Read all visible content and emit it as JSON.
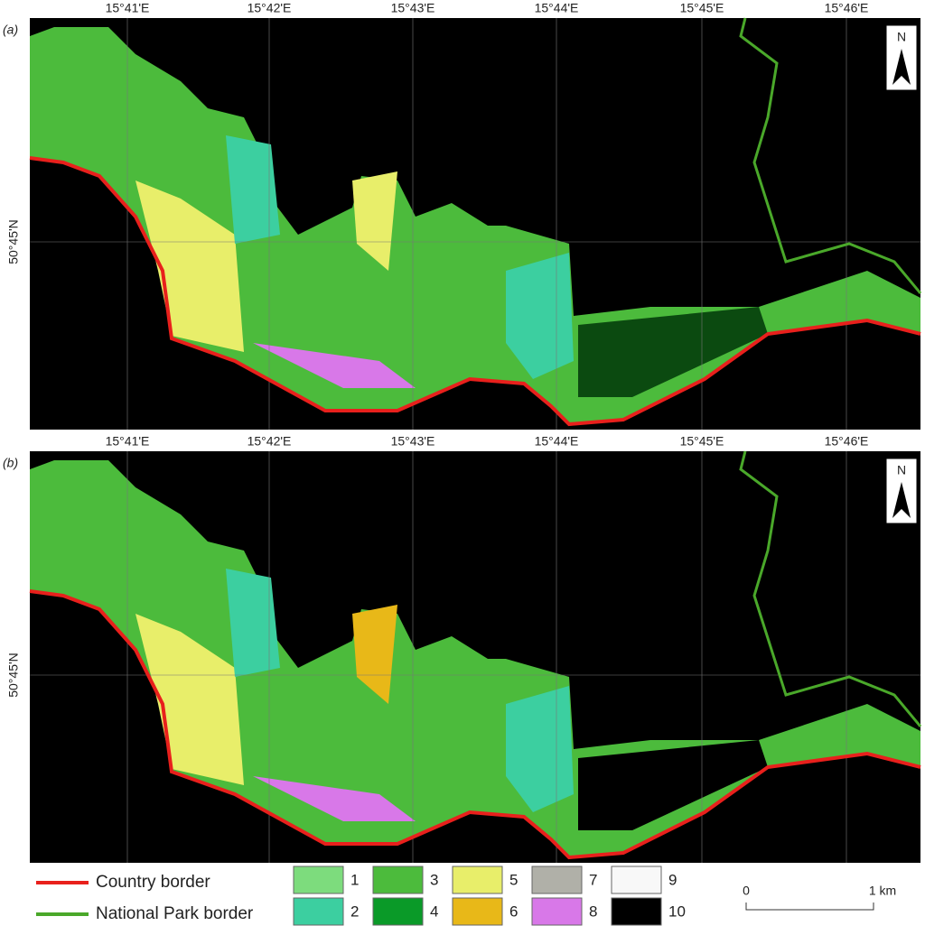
{
  "panels": [
    {
      "label": "(a)",
      "lon_labels": [
        "15°41'E",
        "15°42'E",
        "15°43'E",
        "15°44'E",
        "15°45'E",
        "15°46'E"
      ],
      "lat_label": "50°45'N",
      "north": "N"
    },
    {
      "label": "(b)",
      "lon_labels": [
        "15°41'E",
        "15°42'E",
        "15°43'E",
        "15°44'E",
        "15°45'E",
        "15°46'E"
      ],
      "lat_label": "50°45'N",
      "north": "N"
    }
  ],
  "legend": {
    "borders": [
      {
        "label": "Country border",
        "color": "#e8201c"
      },
      {
        "label": "National Park border",
        "color": "#4aa82a"
      }
    ],
    "classes": [
      {
        "label": "1",
        "color": "#7ddc7d"
      },
      {
        "label": "2",
        "color": "#3ccfa0"
      },
      {
        "label": "3",
        "color": "#4cbb3c"
      },
      {
        "label": "4",
        "color": "#0a9a28"
      },
      {
        "label": "5",
        "color": "#e8ee6a"
      },
      {
        "label": "6",
        "color": "#e8b818"
      },
      {
        "label": "7",
        "color": "#b0b0a8"
      },
      {
        "label": "8",
        "color": "#d878e8"
      },
      {
        "label": "9",
        "color": "#f8f8f8"
      },
      {
        "label": "10",
        "color": "#000000"
      }
    ]
  },
  "scale": {
    "start": "0",
    "end": "1 km"
  }
}
